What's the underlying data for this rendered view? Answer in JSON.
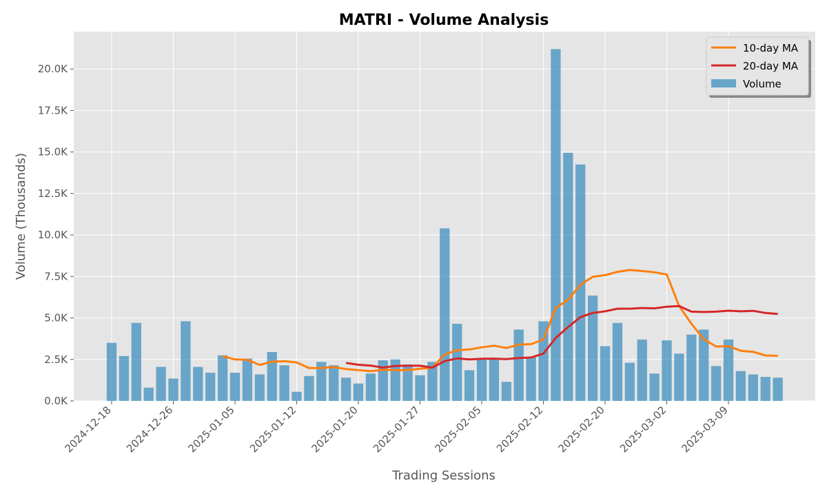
{
  "chart_data": {
    "type": "bar",
    "title": "MATRI - Volume Analysis",
    "xlabel": "Trading Sessions",
    "ylabel": "Volume (Thousands)",
    "ylim": [
      0,
      22250
    ],
    "y_ticks": [
      0,
      2500,
      5000,
      7500,
      10000,
      12500,
      15000,
      17500,
      20000
    ],
    "y_tick_labels": [
      "0.0K",
      "2.5K",
      "5.0K",
      "7.5K",
      "10.0K",
      "12.5K",
      "15.0K",
      "17.5K",
      "20.0K"
    ],
    "x_tick_labels": [
      "2024-12-18",
      "2024-12-26",
      "2025-01-05",
      "2025-01-12",
      "2025-01-20",
      "2025-01-27",
      "2025-02-05",
      "2025-02-12",
      "2025-02-20",
      "2025-03-02",
      "2025-03-09"
    ],
    "x_tick_positions": [
      0,
      5,
      10,
      15,
      20,
      25,
      30,
      35,
      40,
      45,
      50
    ],
    "grid": true,
    "legend_position": "top-right",
    "colors": {
      "volume": "#348ABD",
      "ma10": "#FF7F0E",
      "ma20": "#D62728",
      "background": "#E5E5E5"
    },
    "series": [
      {
        "name": "Volume",
        "type": "bar",
        "values": [
          3500,
          2700,
          4700,
          800,
          2050,
          1350,
          4800,
          2050,
          1700,
          2750,
          1700,
          2550,
          1600,
          2950,
          2150,
          550,
          1500,
          2350,
          2150,
          1400,
          1050,
          1650,
          2450,
          2500,
          2200,
          1550,
          2350,
          10400,
          4650,
          1850,
          2500,
          2550,
          1150,
          4300,
          2650,
          4800,
          21200,
          14950,
          14250,
          6350,
          3300,
          4700,
          2300,
          3700,
          1650,
          3650,
          2850,
          4000,
          4300,
          2100,
          3700,
          1800,
          1600,
          1450,
          1400
        ]
      },
      {
        "name": "10-day MA",
        "type": "line",
        "start_index": 9,
        "values": [
          2700,
          2500,
          2480,
          2170,
          2360,
          2400,
          2320,
          1980,
          1990,
          2040,
          1920,
          1860,
          1790,
          1880,
          1860,
          1860,
          1940,
          2000,
          2800,
          3050,
          3100,
          3230,
          3330,
          3190,
          3390,
          3420,
          3700,
          5600,
          6100,
          7000,
          7480,
          7580,
          7780,
          7890,
          7830,
          7750,
          7620,
          5720,
          4650,
          3720,
          3280,
          3300,
          3020,
          2960,
          2740,
          2720
        ]
      },
      {
        "name": "20-day MA",
        "type": "line",
        "start_index": 19,
        "values": [
          2290,
          2180,
          2130,
          2010,
          2110,
          2120,
          2120,
          2010,
          2400,
          2560,
          2500,
          2540,
          2550,
          2520,
          2580,
          2620,
          2850,
          3800,
          4450,
          5050,
          5300,
          5400,
          5560,
          5560,
          5600,
          5580,
          5680,
          5720,
          5380,
          5360,
          5380,
          5440,
          5400,
          5430,
          5300,
          5240
        ]
      }
    ]
  }
}
